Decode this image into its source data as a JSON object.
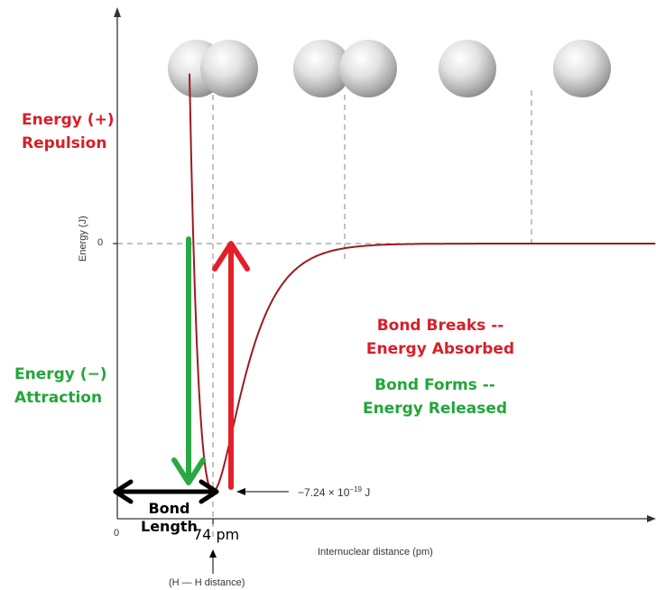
{
  "chart_data": {
    "type": "line",
    "xlabel": "Internuclear distance (pm)",
    "ylabel": "Energy (J)",
    "x_tick_labels": [
      "0"
    ],
    "y_tick_labels": [
      "0"
    ],
    "minimum_marker": "74 pm",
    "minimum_sublabel": "(H — H distance)",
    "minimum_energy": {
      "base": "−7.24 × 10",
      "exp": "−19",
      "unit": " J"
    },
    "minimum_energy_value": -7.24e-19,
    "bond_length_value": 74,
    "bond_length_label": {
      "line1": "Bond",
      "line2": "Length"
    },
    "left_labels": {
      "repulsion": {
        "line1": "Energy (+)",
        "line2": "Repulsion"
      },
      "attraction": {
        "line1": "Energy (−)",
        "line2": "Attraction"
      }
    },
    "annotations": {
      "breaks": {
        "line1": "Bond Breaks --",
        "line2": "Energy Absorbed"
      },
      "forms": {
        "line1": "Bond Forms --",
        "line2": "Energy Released"
      }
    },
    "grid": false,
    "curve_color": "#9b1b22",
    "absorbed_color": "#e3202a",
    "released_color": "#2aa845"
  }
}
